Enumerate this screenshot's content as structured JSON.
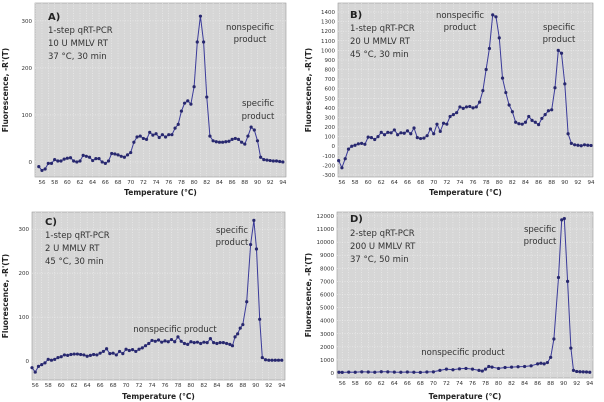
{
  "chart_data": [
    {
      "type": "line",
      "panel_label": "A)",
      "info_lines": [
        "1-step qRT-PCR",
        "10 U MMLV RT",
        "37 °C, 30 min"
      ],
      "annotations": [
        [
          "nonspecific",
          "product"
        ],
        [
          "specific",
          "product"
        ]
      ],
      "xlabel": "Temperature (°C)",
      "ylabel": "Fluorescence, -R'(T)",
      "xlim": [
        54.9,
        94.5
      ],
      "ylim": [
        -32,
        338
      ],
      "xticks": [
        56,
        58,
        60,
        62,
        64,
        66,
        68,
        70,
        72,
        74,
        76,
        78,
        80,
        82,
        84,
        86,
        88,
        90,
        92,
        94
      ],
      "yticks": [
        0,
        100,
        200,
        300
      ],
      "grid": true,
      "x": [
        55.5,
        56,
        56.5,
        57,
        57.5,
        58,
        58.5,
        59,
        59.5,
        60,
        60.5,
        61,
        61.5,
        62,
        62.5,
        63,
        63.5,
        64,
        64.5,
        65,
        65.5,
        66,
        66.5,
        67,
        67.5,
        68,
        68.5,
        69,
        69.5,
        70,
        70.5,
        71,
        71.5,
        72,
        72.5,
        73,
        73.5,
        74,
        74.5,
        75,
        75.5,
        76,
        76.5,
        77,
        77.5,
        78,
        78.5,
        79,
        79.5,
        80,
        80.5,
        81,
        81.5,
        82,
        82.5,
        83,
        83.5,
        84,
        84.5,
        85,
        85.5,
        86,
        86.5,
        87,
        87.5,
        88,
        88.5,
        89,
        89.5,
        90,
        90.5,
        91,
        91.5,
        92,
        92.5,
        93,
        93.5,
        94
      ],
      "y": [
        -10,
        -18,
        -15,
        -3,
        -3,
        5,
        2,
        2,
        6,
        8,
        9,
        2,
        0,
        2,
        14,
        12,
        10,
        3,
        7,
        7,
        0,
        -3,
        2,
        18,
        17,
        15,
        12,
        10,
        15,
        20,
        42,
        53,
        55,
        50,
        48,
        63,
        57,
        60,
        52,
        58,
        53,
        58,
        58,
        72,
        80,
        108,
        125,
        130,
        123,
        160,
        255,
        310,
        255,
        138,
        55,
        45,
        43,
        42,
        42,
        43,
        44,
        48,
        50,
        48,
        42,
        38,
        55,
        74,
        68,
        45,
        10,
        5,
        4,
        3,
        2,
        2,
        1,
        0
      ]
    },
    {
      "type": "line",
      "panel_label": "B)",
      "info_lines": [
        "1-step qRT-PCR",
        "20 U MMLV RT",
        "45 °C, 30 min"
      ],
      "annotations": [
        [
          "nonspecific",
          "product"
        ],
        [
          "specific",
          "product"
        ]
      ],
      "xlabel": "Temperature (°C)",
      "ylabel": "Fluorescence, -R'(T)",
      "xlim": [
        55.4,
        94.3
      ],
      "ylim": [
        -321,
        1494
      ],
      "xticks": [
        56,
        58,
        60,
        62,
        64,
        66,
        68,
        70,
        72,
        74,
        76,
        78,
        80,
        82,
        84,
        86,
        88,
        90,
        92,
        94
      ],
      "yticks": [
        -300,
        -200,
        -100,
        0,
        100,
        200,
        300,
        400,
        500,
        600,
        700,
        800,
        900,
        1000,
        1100,
        1200,
        1300,
        1400
      ],
      "grid": true,
      "x": [
        55.5,
        56,
        56.5,
        57,
        57.5,
        58,
        58.5,
        59,
        59.5,
        60,
        60.5,
        61,
        61.5,
        62,
        62.5,
        63,
        63.5,
        64,
        64.5,
        65,
        65.5,
        66,
        66.5,
        67,
        67.5,
        68,
        68.5,
        69,
        69.5,
        70,
        70.5,
        71,
        71.5,
        72,
        72.5,
        73,
        73.5,
        74,
        74.5,
        75,
        75.5,
        76,
        76.5,
        77,
        77.5,
        78,
        78.5,
        79,
        79.5,
        80,
        80.5,
        81,
        81.5,
        82,
        82.5,
        83,
        83.5,
        84,
        84.5,
        85,
        85.5,
        86,
        86.5,
        87,
        87.5,
        88,
        88.5,
        89,
        89.5,
        90,
        90.5,
        91,
        91.5,
        92,
        92.5,
        93,
        93.5,
        94
      ],
      "y": [
        -150,
        -225,
        -130,
        -30,
        0,
        10,
        25,
        30,
        20,
        95,
        90,
        70,
        100,
        145,
        120,
        145,
        140,
        170,
        120,
        140,
        135,
        160,
        130,
        190,
        90,
        80,
        85,
        110,
        180,
        130,
        230,
        155,
        240,
        230,
        310,
        330,
        350,
        410,
        395,
        410,
        415,
        400,
        410,
        460,
        580,
        800,
        1020,
        1370,
        1350,
        1130,
        710,
        560,
        430,
        360,
        250,
        235,
        230,
        250,
        310,
        270,
        250,
        225,
        290,
        330,
        370,
        380,
        610,
        1000,
        970,
        650,
        130,
        30,
        15,
        10,
        5,
        15,
        10,
        8
      ]
    },
    {
      "type": "line",
      "panel_label": "C)",
      "info_lines": [
        "1-step qRT-PCR",
        "2 U MMLV RT",
        "45 °C, 30 min"
      ],
      "annotations": [
        [
          "specific",
          "product"
        ],
        [
          "nonspecific product"
        ]
      ],
      "xlabel": "Temperature (°C)",
      "ylabel": "Fluorescence, -R'(T)",
      "xlim": [
        55.5,
        94.5
      ],
      "ylim": [
        -43,
        339
      ],
      "xticks": [
        56,
        58,
        60,
        62,
        64,
        66,
        68,
        70,
        72,
        74,
        76,
        78,
        80,
        82,
        84,
        86,
        88,
        90,
        92,
        94
      ],
      "yticks": [
        0,
        100,
        200,
        300
      ],
      "grid": true,
      "x": [
        55.5,
        56,
        56.5,
        57,
        57.5,
        58,
        58.5,
        59,
        59.5,
        60,
        60.5,
        61,
        61.5,
        62,
        62.5,
        63,
        63.5,
        64,
        64.5,
        65,
        65.5,
        66,
        66.5,
        67,
        67.5,
        68,
        68.5,
        69,
        69.5,
        70,
        70.5,
        71,
        71.5,
        72,
        72.5,
        73,
        73.5,
        74,
        74.5,
        75,
        75.5,
        76,
        76.5,
        77,
        77.5,
        78,
        78.5,
        79,
        79.5,
        80,
        80.5,
        81,
        81.5,
        82,
        82.5,
        83,
        83.5,
        84,
        84.5,
        85,
        85.5,
        86,
        86.4,
        86.8,
        87.2,
        87.6,
        88,
        88.6,
        89.2,
        89.7,
        90.1,
        90.6,
        91,
        91.5,
        92,
        92.5,
        93,
        93.5,
        94
      ],
      "y": [
        -15,
        -25,
        -12,
        -8,
        -4,
        4,
        2,
        4,
        8,
        10,
        14,
        13,
        15,
        16,
        16,
        15,
        14,
        11,
        13,
        15,
        14,
        18,
        22,
        28,
        17,
        18,
        14,
        22,
        17,
        27,
        24,
        26,
        22,
        27,
        30,
        35,
        40,
        47,
        45,
        48,
        43,
        46,
        44,
        49,
        44,
        55,
        45,
        40,
        38,
        44,
        42,
        43,
        40,
        43,
        42,
        51,
        42,
        40,
        42,
        42,
        40,
        38,
        35,
        55,
        62,
        75,
        83,
        135,
        265,
        320,
        255,
        95,
        8,
        3,
        2,
        2,
        2,
        2,
        2
      ]
    },
    {
      "type": "line",
      "panel_label": "D)",
      "info_lines": [
        "2-step qRT-PCR",
        "200 U MMLV RT",
        "37 °C, 50 min"
      ],
      "annotations": [
        [
          "specific",
          "product"
        ],
        [
          "nonspecific product"
        ]
      ],
      "xlabel": "Temperature (°C)",
      "ylabel": "Fluorescence, -R'(T)",
      "xlim": [
        55.2,
        94.5
      ],
      "ylim": [
        -380,
        12300
      ],
      "xticks": [
        56,
        58,
        60,
        62,
        64,
        66,
        68,
        70,
        72,
        74,
        76,
        78,
        80,
        82,
        84,
        86,
        88,
        90,
        92,
        94
      ],
      "yticks": [
        0,
        1000,
        2000,
        3000,
        4000,
        5000,
        6000,
        7000,
        8000,
        9000,
        10000,
        11000,
        12000
      ],
      "grid": true,
      "x": [
        55.5,
        56,
        57,
        58,
        59,
        60,
        61,
        62,
        63,
        64,
        65,
        66,
        67,
        68,
        69,
        70,
        71,
        72,
        73,
        74,
        75,
        76,
        77,
        77.5,
        78,
        78.5,
        79,
        80,
        81,
        82,
        83,
        84,
        85,
        86,
        86.5,
        87,
        87.5,
        88,
        88.5,
        89.2,
        89.7,
        90.1,
        90.6,
        91.1,
        91.5,
        92,
        92.5,
        93,
        93.5,
        94
      ],
      "y": [
        60,
        50,
        70,
        60,
        90,
        80,
        60,
        100,
        90,
        70,
        60,
        80,
        60,
        50,
        80,
        90,
        200,
        300,
        250,
        320,
        350,
        300,
        200,
        150,
        300,
        500,
        450,
        350,
        420,
        450,
        480,
        500,
        550,
        700,
        750,
        700,
        800,
        1200,
        2600,
        7300,
        11700,
        11800,
        7000,
        1900,
        200,
        120,
        100,
        90,
        80,
        60
      ]
    }
  ]
}
